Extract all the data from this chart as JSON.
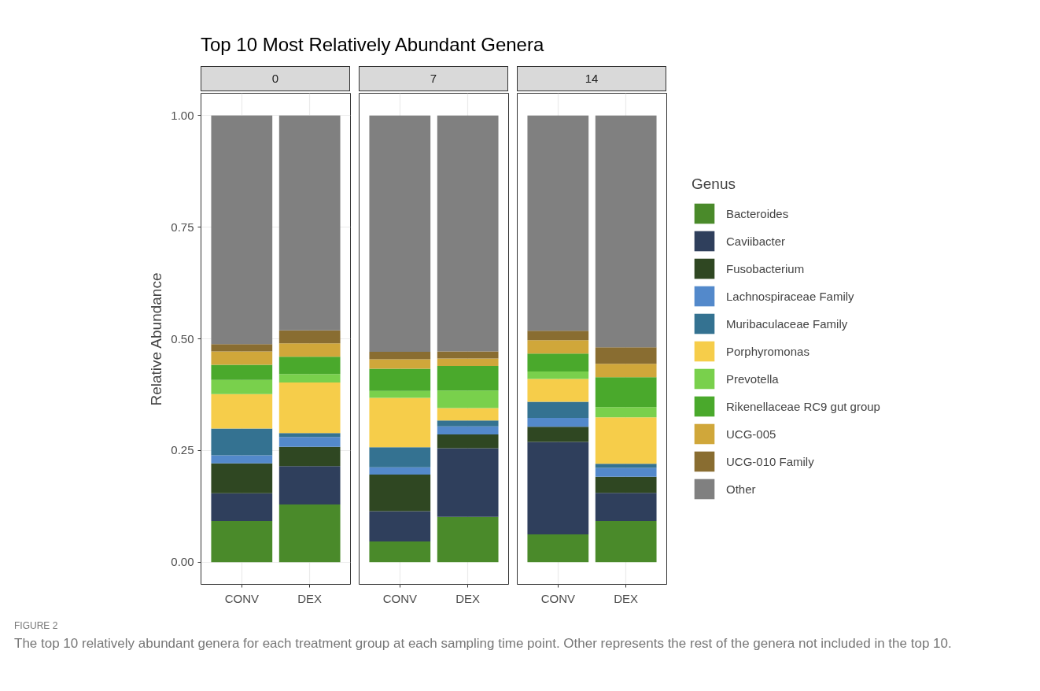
{
  "chart_data": [
    {
      "type": "bar",
      "stacked": true,
      "title": "Top 10 Most Relatively Abundant Genera",
      "subtitle": "0",
      "ylabel": "Relative Abundance",
      "categories": [
        "CONV",
        "DEX"
      ],
      "ylim": [
        -0.05,
        1.05
      ],
      "yticks": [
        {
          "value": 0,
          "label": "0.00"
        },
        {
          "value": 0.25,
          "label": "0.25"
        },
        {
          "value": 0.5,
          "label": "0.50"
        },
        {
          "value": 0.75,
          "label": "0.75"
        },
        {
          "value": 1,
          "label": "1.00"
        }
      ],
      "grid": true,
      "annotations": [
        "FIGURE 2",
        "The top 10 relatively abundant genera for each treatment group at each sampling time point. Other represents the rest of the genera not included in the top 10."
      ],
      "series": [
        {
          "color": "#4a8a2a",
          "values": [
            0.092,
            0.129
          ]
        },
        {
          "color": "#2f3f5c",
          "values": [
            0.062,
            0.086
          ]
        },
        {
          "color": "#2f4722",
          "values": [
            0.067,
            0.043
          ]
        },
        {
          "color": "#5389cb",
          "values": [
            0.018,
            0.022
          ]
        },
        {
          "color": "#347291",
          "values": [
            0.06,
            0.009
          ]
        },
        {
          "color": "#f6cd4a",
          "values": [
            0.077,
            0.113
          ]
        },
        {
          "color": "#79d04c",
          "values": [
            0.032,
            0.019
          ]
        },
        {
          "color": "#4aa92c",
          "values": [
            0.034,
            0.039
          ]
        },
        {
          "color": "#d0a73a",
          "values": [
            0.03,
            0.03
          ]
        },
        {
          "color": "#896d31",
          "values": [
            0.016,
            0.029
          ]
        },
        {
          "color": "#808080",
          "values": [
            0.512,
            0.481
          ]
        }
      ]
    },
    {
      "type": "bar",
      "stacked": true,
      "subtitle": "7",
      "categories": [
        "CONV",
        "DEX"
      ],
      "ylim": [
        -0.05,
        1.05
      ],
      "tick_labels": "x",
      "grid": true,
      "series": [
        {
          "color": "#4a8a2a",
          "values": [
            0.046,
            0.101
          ]
        },
        {
          "color": "#2f3f5c",
          "values": [
            0.068,
            0.154
          ]
        },
        {
          "color": "#2f4722",
          "values": [
            0.082,
            0.031
          ]
        },
        {
          "color": "#5389cb",
          "values": [
            0.016,
            0.018
          ]
        },
        {
          "color": "#347291",
          "values": [
            0.045,
            0.013
          ]
        },
        {
          "color": "#f6cd4a",
          "values": [
            0.111,
            0.028
          ]
        },
        {
          "color": "#79d04c",
          "values": [
            0.015,
            0.039
          ]
        },
        {
          "color": "#4aa92c",
          "values": [
            0.05,
            0.055
          ]
        },
        {
          "color": "#d0a73a",
          "values": [
            0.021,
            0.017
          ]
        },
        {
          "color": "#896d31",
          "values": [
            0.017,
            0.016
          ]
        },
        {
          "color": "#808080",
          "values": [
            0.529,
            0.528
          ]
        }
      ]
    },
    {
      "type": "bar",
      "stacked": true,
      "subtitle": "14",
      "categories": [
        "CONV",
        "DEX"
      ],
      "ylim": [
        -0.05,
        1.05
      ],
      "tick_labels": "x",
      "grid": true,
      "legend": "right",
      "legend_title": "Genus",
      "series": [
        {
          "name": "Bacteroides",
          "color": "#4a8a2a",
          "values": [
            0.062,
            0.092
          ]
        },
        {
          "name": "Caviibacter",
          "color": "#2f3f5c",
          "values": [
            0.207,
            0.063
          ]
        },
        {
          "name": "Fusobacterium",
          "color": "#2f4722",
          "values": [
            0.034,
            0.036
          ]
        },
        {
          "name": "Lachnospiraceae Family",
          "color": "#5389cb",
          "values": [
            0.02,
            0.02
          ]
        },
        {
          "name": "Muribaculaceae Family",
          "color": "#347291",
          "values": [
            0.036,
            0.009
          ]
        },
        {
          "name": "Porphyromonas",
          "color": "#f6cd4a",
          "values": [
            0.051,
            0.104
          ]
        },
        {
          "name": "Prevotella",
          "color": "#79d04c",
          "values": [
            0.017,
            0.023
          ]
        },
        {
          "name": "Rikenellaceae RC9 gut group",
          "color": "#4aa92c",
          "values": [
            0.04,
            0.067
          ]
        },
        {
          "name": "UCG-005",
          "color": "#d0a73a",
          "values": [
            0.03,
            0.03
          ]
        },
        {
          "name": "UCG-010 Family",
          "color": "#896d31",
          "values": [
            0.021,
            0.037
          ]
        },
        {
          "name": "Other",
          "color": "#808080",
          "values": [
            0.482,
            0.519
          ]
        }
      ]
    }
  ]
}
